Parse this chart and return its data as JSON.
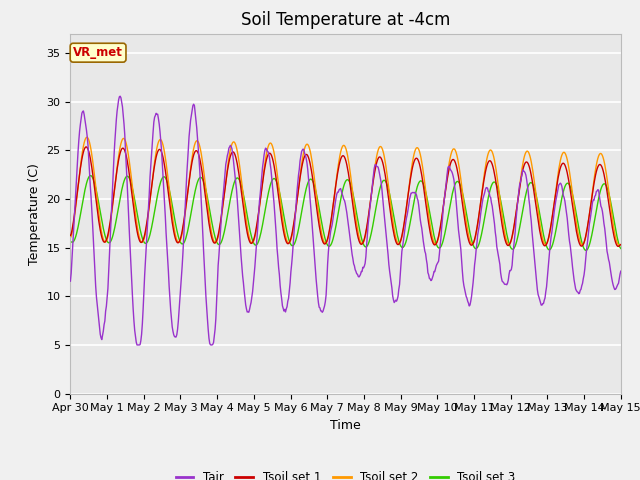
{
  "title": "Soil Temperature at -4cm",
  "xlabel": "Time",
  "ylabel": "Temperature (C)",
  "ylim": [
    0,
    37
  ],
  "yticks": [
    0,
    5,
    10,
    15,
    20,
    25,
    30,
    35
  ],
  "x_labels": [
    "Apr 30",
    "May 1",
    "May 2",
    "May 3",
    "May 4",
    "May 5",
    "May 6",
    "May 7",
    "May 8",
    "May 9",
    "May 10",
    "May 11",
    "May 12",
    "May 13",
    "May 14",
    "May 15"
  ],
  "n_days": 15,
  "color_tair": "#9933cc",
  "color_tsoil1": "#cc0000",
  "color_tsoil2": "#ff9900",
  "color_tsoil3": "#33cc00",
  "legend_labels": [
    "Tair",
    "Tsoil set 1",
    "Tsoil set 2",
    "Tsoil set 3"
  ],
  "annotation_text": "VR_met",
  "annotation_color": "#cc0000",
  "annotation_bg": "#ffffcc",
  "annotation_border": "#996600",
  "bg_inner": "#e8e8e8",
  "bg_outer": "#f0f0f0",
  "grid_color": "#ffffff",
  "title_fontsize": 12,
  "axis_fontsize": 9,
  "tick_fontsize": 8
}
